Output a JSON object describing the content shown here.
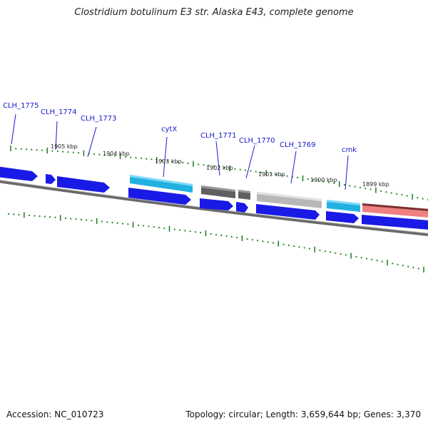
{
  "title": "Clostridium botulinum E3 str. Alaska E43, complete genome",
  "footer": {
    "accession": "Accession: NC_010723",
    "summary": "Topology: circular; Length: 3,659,644 bp; Genes: 3,370"
  },
  "genes": [
    {
      "label": "CLH_1775"
    },
    {
      "label": "CLH_1774"
    },
    {
      "label": "CLH_1773"
    },
    {
      "label": "cytX"
    },
    {
      "label": "CLH_1771"
    },
    {
      "label": "CLH_1770"
    },
    {
      "label": "CLH_1769"
    },
    {
      "label": "cmk"
    }
  ],
  "kbp_ticks": [
    {
      "label": "1905 kbp"
    },
    {
      "label": "1904 kbp"
    },
    {
      "label": "1903 kbp"
    },
    {
      "label": "1902 kbp"
    },
    {
      "label": "1901 kbp"
    },
    {
      "label": "1900 kbp"
    },
    {
      "label": "1899 kbp"
    }
  ],
  "colors": {
    "gene_blue": "#1a1ae6",
    "feature_cyan": "#22b0e0",
    "feature_darkgray": "#606060",
    "feature_lightgray": "#b8b8b8",
    "feature_salmon": "#f08080",
    "tick_green": "#1a7a1a",
    "backbone": "#808080",
    "label_blue": "#1a1acc"
  }
}
